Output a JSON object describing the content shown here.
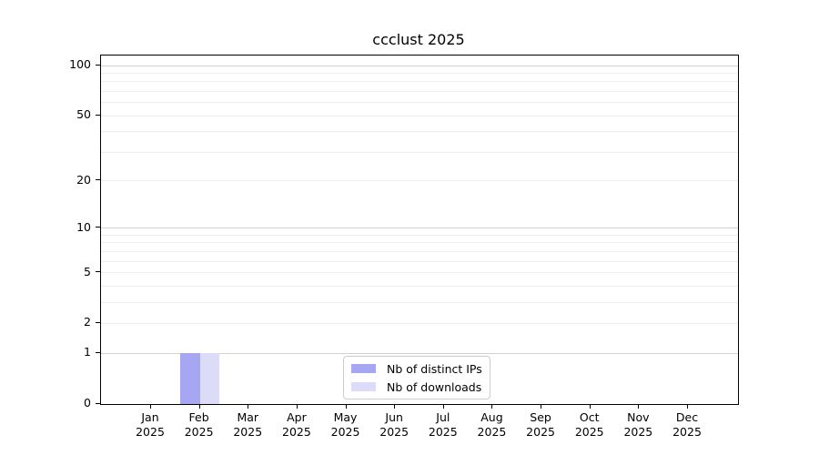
{
  "chart_data": {
    "type": "bar",
    "title": "ccclust 2025",
    "categories": [
      "Jan",
      "Feb",
      "Mar",
      "Apr",
      "May",
      "Jun",
      "Jul",
      "Aug",
      "Sep",
      "Oct",
      "Nov",
      "Dec"
    ],
    "category_year_line": "2025",
    "series": [
      {
        "name": "Nb of distinct IPs",
        "color": "#a6a6f2",
        "values": [
          0,
          1,
          0,
          0,
          0,
          0,
          0,
          0,
          0,
          0,
          0,
          0
        ]
      },
      {
        "name": "Nb of downloads",
        "color": "#dcdcf8",
        "values": [
          0,
          1,
          0,
          0,
          0,
          0,
          0,
          0,
          0,
          0,
          0,
          0
        ]
      }
    ],
    "y_axis": {
      "scale": "log1p",
      "ticks": [
        0,
        1,
        2,
        5,
        10,
        20,
        50,
        100
      ],
      "max": 115,
      "major_gridlines": [
        1,
        10,
        100
      ],
      "minor_gridlines": [
        2,
        3,
        4,
        5,
        6,
        7,
        8,
        9,
        20,
        30,
        40,
        50,
        60,
        70,
        80,
        90
      ],
      "major_grid_color": "#d2d2d2",
      "minor_grid_color": "#ededed"
    },
    "legend_position": "lower center",
    "grid": "horizontal-only"
  },
  "colors": {
    "axis": "#000000",
    "text": "#000000",
    "background": "#ffffff"
  }
}
